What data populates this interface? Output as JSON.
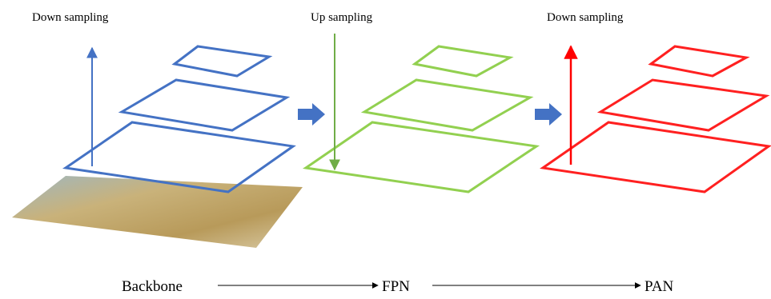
{
  "headers": [
    "Down sampling",
    "Up sampling",
    "Down sampling"
  ],
  "stages": [
    "Backbone",
    "FPN",
    "PAN"
  ]
}
